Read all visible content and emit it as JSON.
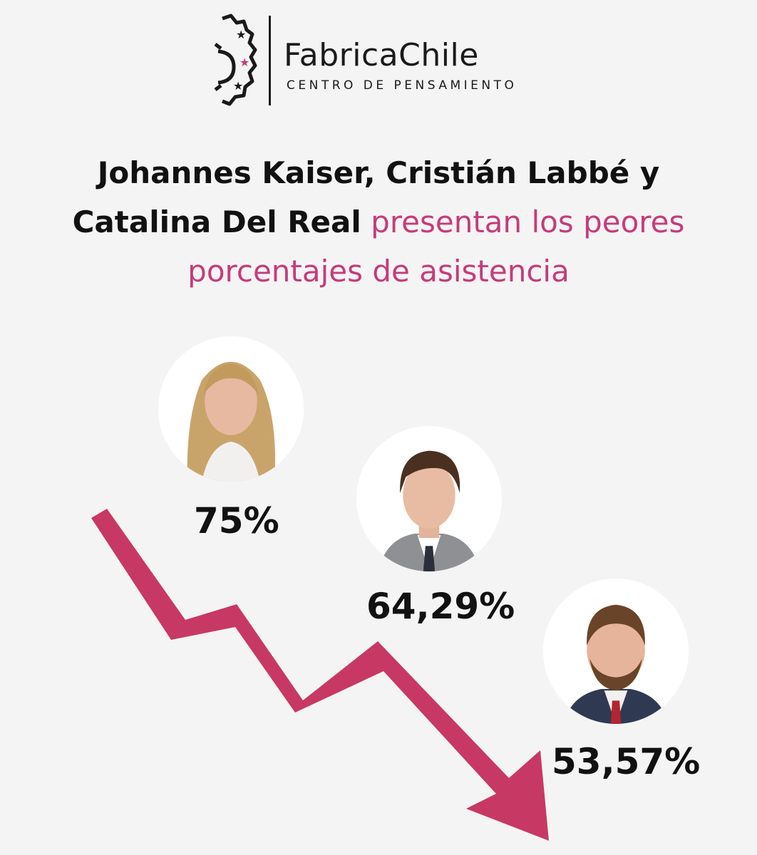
{
  "logo": {
    "name": "FabricaChile",
    "subtitle": "CENTRO DE PENSAMIENTO"
  },
  "headline": {
    "names": "Johannes Kaiser, Cristián Labbé y Catalina Del Real",
    "rest": "presentan los peores porcentajes de asistencia"
  },
  "people": [
    {
      "percentage": "75%"
    },
    {
      "percentage": "64,29%"
    },
    {
      "percentage": "53,57%"
    }
  ],
  "colors": {
    "accent": "#c63b7a",
    "arrow": "#c83864",
    "text": "#111111",
    "background": "#f5f4f4"
  },
  "icons": {
    "logo": "gear-with-stars-icon",
    "trend": "downward-arrow-icon"
  }
}
